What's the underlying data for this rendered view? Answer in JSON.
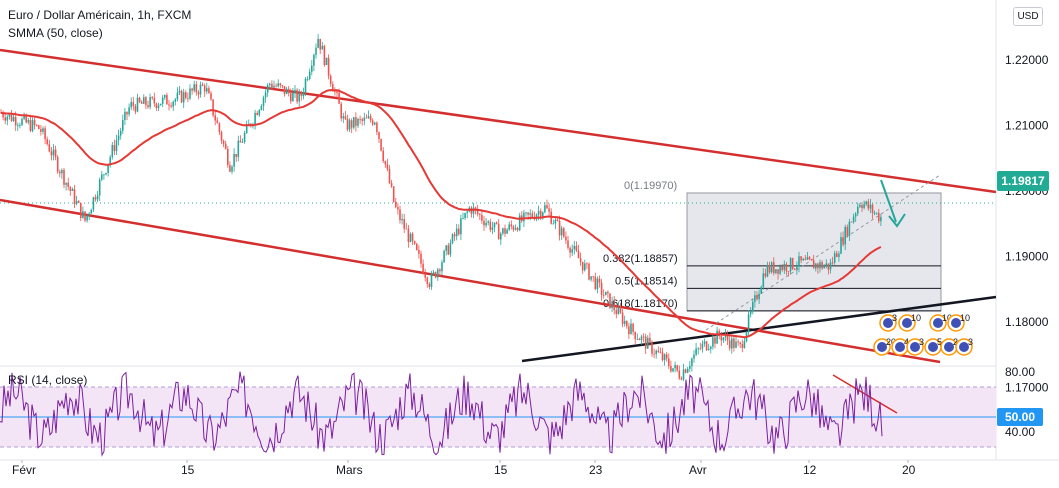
{
  "header": {
    "symbol_title": "Euro / Dollar Américain, 1h, FXCM",
    "indicator": "SMMA (50, close)",
    "currency_badge": "USD"
  },
  "rsi_panel": {
    "label": "RSI (14, close)",
    "current_value_label": "50.00",
    "axis_ticks": [
      "80.00",
      "40.00"
    ]
  },
  "price_axis": {
    "ticks": [
      "1.22000",
      "1.21000",
      "1.20000",
      "1.19000",
      "1.18000",
      "1.17000"
    ],
    "current_price_label": "1.19817"
  },
  "time_axis": {
    "ticks": [
      "Févr",
      "15",
      "Mars",
      "15",
      "23",
      "Avr",
      "12",
      "20"
    ]
  },
  "fibonacci": {
    "levels": [
      {
        "label": "0(1.19970)",
        "value": 1.1997
      },
      {
        "label": "0.382(1.18857)",
        "value": 1.18857
      },
      {
        "label": "0.5(1.18514)",
        "value": 1.18514
      },
      {
        "label": "0.618(1.18170)",
        "value": 1.1817
      }
    ]
  },
  "event_markers": {
    "labels": [
      "3",
      "10",
      "10",
      "10",
      "203",
      "4",
      "3",
      "5",
      "2",
      "3"
    ]
  },
  "colors": {
    "candle_up": "#26a69a",
    "candle_down": "#ef5350",
    "smma": "#e53935",
    "channel": "#d32f2f",
    "trend_support": "#131722",
    "rsi_line": "#7b1fa2",
    "rsi_band": "#f3e5f5",
    "price_tag": "#22ab94",
    "fib_fill": "#d1d4dc"
  },
  "chart_data": {
    "type": "line",
    "title": "Euro / Dollar Américain, 1h, FXCM",
    "xlabel": "",
    "ylabel": "",
    "ylim": [
      1.165,
      1.2235
    ],
    "series": [
      {
        "name": "SMMA (50, close)",
        "x": [
          "Févr",
          "15",
          "Mars",
          "15",
          "23",
          "Avr",
          "12",
          "20"
        ],
        "values": [
          1.2115,
          1.2085,
          1.215,
          1.1925,
          1.1925,
          1.174,
          1.1815,
          1.1955
        ]
      }
    ],
    "price_path": [
      [
        0,
        1.212
      ],
      [
        40,
        1.2095
      ],
      [
        85,
        1.1955
      ],
      [
        130,
        1.213
      ],
      [
        175,
        1.214
      ],
      [
        205,
        1.216
      ],
      [
        230,
        1.204
      ],
      [
        270,
        1.2165
      ],
      [
        300,
        1.214
      ],
      [
        318,
        1.2235
      ],
      [
        345,
        1.21
      ],
      [
        375,
        1.211
      ],
      [
        395,
        1.1975
      ],
      [
        430,
        1.186
      ],
      [
        470,
        1.1975
      ],
      [
        500,
        1.1935
      ],
      [
        545,
        1.1975
      ],
      [
        575,
        1.1905
      ],
      [
        600,
        1.185
      ],
      [
        630,
        1.179
      ],
      [
        680,
        1.172
      ],
      [
        700,
        1.176
      ],
      [
        720,
        1.178
      ],
      [
        740,
        1.176
      ],
      [
        765,
        1.188
      ],
      [
        800,
        1.189
      ],
      [
        830,
        1.1885
      ],
      [
        860,
        1.1985
      ],
      [
        880,
        1.196
      ]
    ],
    "rsi": {
      "range": [
        0,
        100
      ],
      "overbought": 70,
      "oversold": 30,
      "midline": 50,
      "current": 50.0
    }
  }
}
